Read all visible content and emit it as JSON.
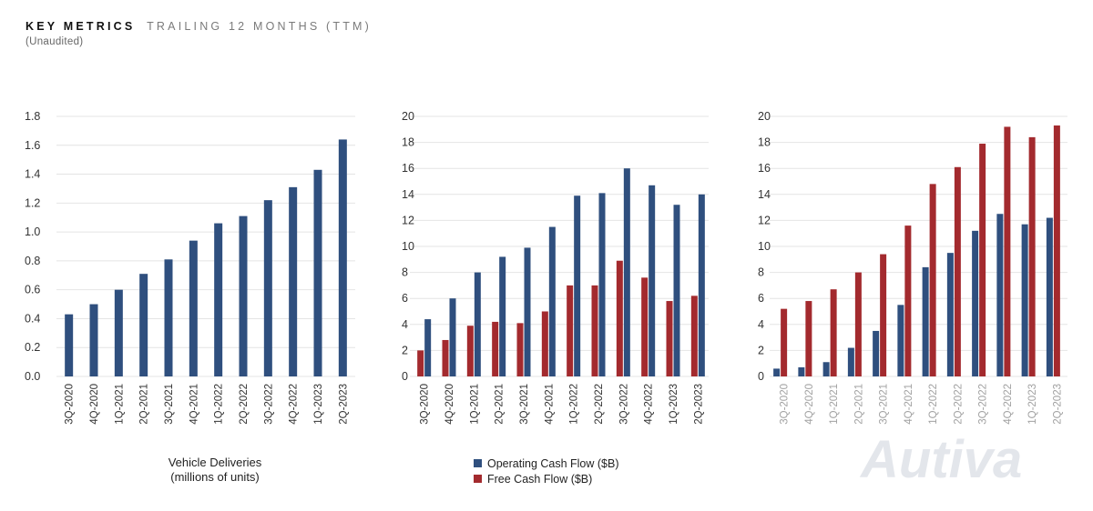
{
  "header": {
    "title_bold": "KEY METRICS",
    "title_light": "TRAILING 12 MONTHS (TTM)",
    "subtitle": "(Unaudited)"
  },
  "colors": {
    "blue": "#2f4f7e",
    "red": "#a32a2e",
    "grid": "#e4e4e4"
  },
  "watermark": "Autiva",
  "chart_data": [
    {
      "type": "bar",
      "categories": [
        "3Q-2020",
        "4Q-2020",
        "1Q-2021",
        "2Q-2021",
        "3Q-2021",
        "4Q-2021",
        "1Q-2022",
        "2Q-2022",
        "3Q-2022",
        "4Q-2022",
        "1Q-2023",
        "2Q-2023"
      ],
      "series": [
        {
          "values": [
            0.43,
            0.5,
            0.6,
            0.71,
            0.81,
            0.94,
            1.06,
            1.11,
            1.22,
            1.31,
            1.43,
            1.64
          ],
          "color": "#2f4f7e"
        }
      ],
      "ylim": [
        0,
        1.8
      ],
      "yticks": [
        "0.0",
        "0.2",
        "0.4",
        "0.6",
        "0.8",
        "1.0",
        "1.2",
        "1.4",
        "1.6",
        "1.8"
      ],
      "xlabel_lines": [
        "Vehicle Deliveries",
        "(millions of units)"
      ],
      "grid": true
    },
    {
      "type": "bar",
      "categories": [
        "3Q-2020",
        "4Q-2020",
        "1Q-2021",
        "2Q-2021",
        "3Q-2021",
        "4Q-2021",
        "1Q-2022",
        "2Q-2022",
        "3Q-2022",
        "4Q-2022",
        "1Q-2023",
        "2Q-2023"
      ],
      "series": [
        {
          "name": "Free Cash Flow ($B)",
          "values": [
            2.0,
            2.8,
            3.9,
            4.2,
            4.1,
            5.0,
            7.0,
            7.0,
            8.9,
            7.6,
            5.8,
            6.2
          ],
          "color": "#a32a2e"
        },
        {
          "name": "Operating Cash Flow ($B)",
          "values": [
            4.4,
            6.0,
            8.0,
            9.2,
            9.9,
            11.5,
            13.9,
            14.1,
            16.0,
            14.7,
            13.2,
            14.0
          ],
          "color": "#2f4f7e"
        }
      ],
      "legend_order": [
        1,
        0
      ],
      "ylim": [
        0,
        20
      ],
      "yticks": [
        "0",
        "2",
        "4",
        "6",
        "8",
        "10",
        "12",
        "14",
        "16",
        "18",
        "20"
      ],
      "grid": true,
      "legend": "bottom"
    },
    {
      "type": "bar",
      "categories": [
        "3Q-2020",
        "4Q-2020",
        "1Q-2021",
        "2Q-2021",
        "3Q-2021",
        "4Q-2021",
        "1Q-2022",
        "2Q-2022",
        "3Q-2022",
        "4Q-2022",
        "1Q-2023",
        "2Q-2023"
      ],
      "series": [
        {
          "values": [
            0.6,
            0.7,
            1.1,
            2.2,
            3.5,
            5.5,
            8.4,
            9.5,
            11.2,
            12.5,
            11.7,
            12.2
          ],
          "color": "#2f4f7e"
        },
        {
          "values": [
            5.2,
            5.8,
            6.7,
            8.0,
            9.4,
            11.6,
            14.8,
            16.1,
            17.9,
            19.2,
            18.4,
            19.3
          ],
          "color": "#a32a2e"
        }
      ],
      "ylim": [
        0,
        20
      ],
      "yticks": [
        "0",
        "2",
        "4",
        "6",
        "8",
        "10",
        "12",
        "14",
        "16",
        "18",
        "20"
      ],
      "grid": true,
      "tick_labels_blurred": true
    }
  ]
}
